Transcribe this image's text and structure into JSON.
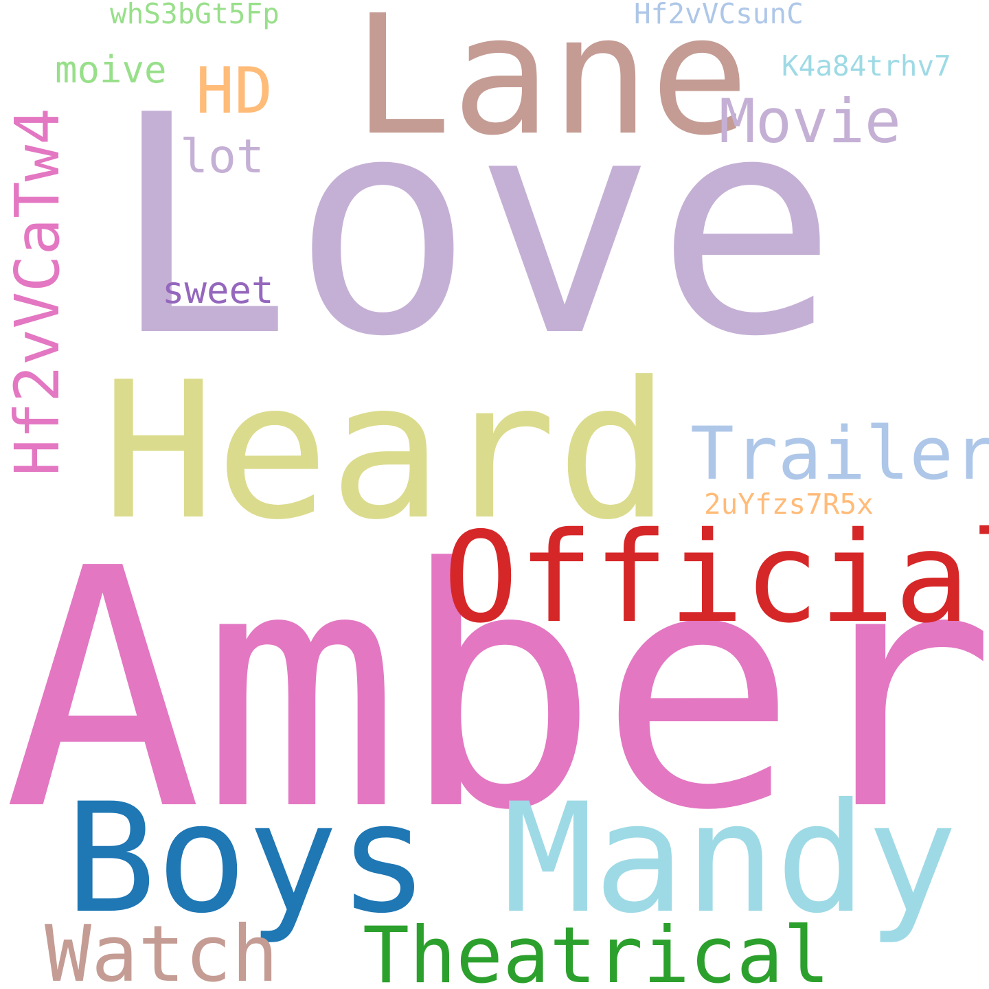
{
  "words": [
    {
      "id": "love",
      "text": "Love",
      "color": "#c5b0d5"
    },
    {
      "id": "amber",
      "text": "Amber",
      "color": "#e377c2"
    },
    {
      "id": "heard",
      "text": "Heard",
      "color": "#dbdb8d"
    },
    {
      "id": "lane",
      "text": "Lane",
      "color": "#c49c94"
    },
    {
      "id": "official",
      "text": "Official",
      "color": "#d62728"
    },
    {
      "id": "boys",
      "text": "Boys",
      "color": "#1f77b4"
    },
    {
      "id": "mandy",
      "text": "Mandy",
      "color": "#9edae5"
    },
    {
      "id": "theatrical",
      "text": "Theatrical",
      "color": "#2ca02c"
    },
    {
      "id": "watch",
      "text": "Watch",
      "color": "#c49c94"
    },
    {
      "id": "trailer",
      "text": "Trailer",
      "color": "#aec7e8"
    },
    {
      "id": "hf2vvcatw4",
      "text": "Hf2vVCaTw4",
      "color": "#e377c2"
    },
    {
      "id": "movie",
      "text": "Movie",
      "color": "#c5b0d5"
    },
    {
      "id": "hd",
      "text": "HD",
      "color": "#ffbb78"
    },
    {
      "id": "lot",
      "text": "lot",
      "color": "#c5b0d5"
    },
    {
      "id": "sweet",
      "text": "sweet",
      "color": "#9467bd"
    },
    {
      "id": "moive",
      "text": "moive",
      "color": "#98df8a"
    },
    {
      "id": "whs3bgt5fp",
      "text": "whS3bGt5Fp",
      "color": "#98df8a"
    },
    {
      "id": "hf2vvcsunc",
      "text": "Hf2vVCsunC",
      "color": "#aec7e8"
    },
    {
      "id": "k4a84trhv7",
      "text": "K4a84trhv7",
      "color": "#9edae5"
    },
    {
      "id": "2uyfzs7r5x",
      "text": "2uYfzs7R5x",
      "color": "#ffbb78"
    }
  ]
}
